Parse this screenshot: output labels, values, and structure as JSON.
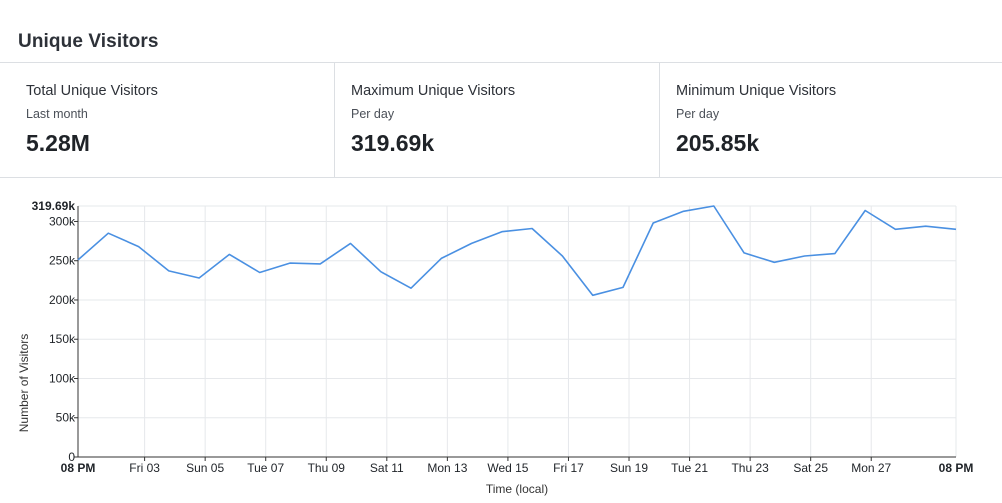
{
  "panel": {
    "title": "Unique Visitors"
  },
  "stats": [
    {
      "label": "Total Unique Visitors",
      "sub": "Last month",
      "value": "5.28M"
    },
    {
      "label": "Maximum Unique Visitors",
      "sub": "Per day",
      "value": "319.69k"
    },
    {
      "label": "Minimum Unique Visitors",
      "sub": "Per day",
      "value": "205.85k"
    }
  ],
  "colors": {
    "line": "#4a90e2",
    "grid": "#e6e8eb",
    "axis": "#333333",
    "text": "#1f2328",
    "divider": "#dcdfe3"
  },
  "chart_data": {
    "type": "line",
    "title": "",
    "xlabel": "Time (local)",
    "ylabel": "Number of Visitors",
    "ylim": [
      0,
      319690
    ],
    "grid": true,
    "legend": "none",
    "x_start_label": "08 PM",
    "x_end_label": "08 PM",
    "max_label": "319.69k",
    "y_ticks": [
      {
        "value": 0,
        "label": "0"
      },
      {
        "value": 50000,
        "label": "50k"
      },
      {
        "value": 100000,
        "label": "100k"
      },
      {
        "value": 150000,
        "label": "150k"
      },
      {
        "value": 200000,
        "label": "200k"
      },
      {
        "value": 250000,
        "label": "250k"
      },
      {
        "value": 300000,
        "label": "300k"
      }
    ],
    "x_ticks": [
      {
        "x": 2.2,
        "label": "Fri 03"
      },
      {
        "x": 4.2,
        "label": "Sun 05"
      },
      {
        "x": 6.2,
        "label": "Tue 07"
      },
      {
        "x": 8.2,
        "label": "Thu 09"
      },
      {
        "x": 10.2,
        "label": "Sat 11"
      },
      {
        "x": 12.2,
        "label": "Mon 13"
      },
      {
        "x": 14.2,
        "label": "Wed 15"
      },
      {
        "x": 16.2,
        "label": "Fri 17"
      },
      {
        "x": 18.2,
        "label": "Sun 19"
      },
      {
        "x": 20.2,
        "label": "Tue 21"
      },
      {
        "x": 22.2,
        "label": "Thu 23"
      },
      {
        "x": 24.2,
        "label": "Sat 25"
      },
      {
        "x": 26.2,
        "label": "Mon 27"
      }
    ],
    "x_range": [
      0,
      29
    ],
    "series": [
      {
        "x": [
          0,
          1,
          2,
          3,
          4,
          5,
          6,
          7,
          8,
          9,
          10,
          11,
          12,
          13,
          14,
          15,
          16,
          17,
          18,
          19,
          20,
          21,
          22,
          23,
          24,
          25,
          26,
          27,
          28,
          29
        ],
        "values": [
          251000,
          285000,
          268000,
          237000,
          228000,
          258000,
          235000,
          247000,
          246000,
          272000,
          236000,
          215000,
          253000,
          272000,
          287000,
          291000,
          256000,
          206000,
          216000,
          298000,
          313000,
          319690,
          260000,
          248000,
          256000,
          259000,
          314000,
          290000,
          294000,
          290000
        ]
      }
    ]
  }
}
